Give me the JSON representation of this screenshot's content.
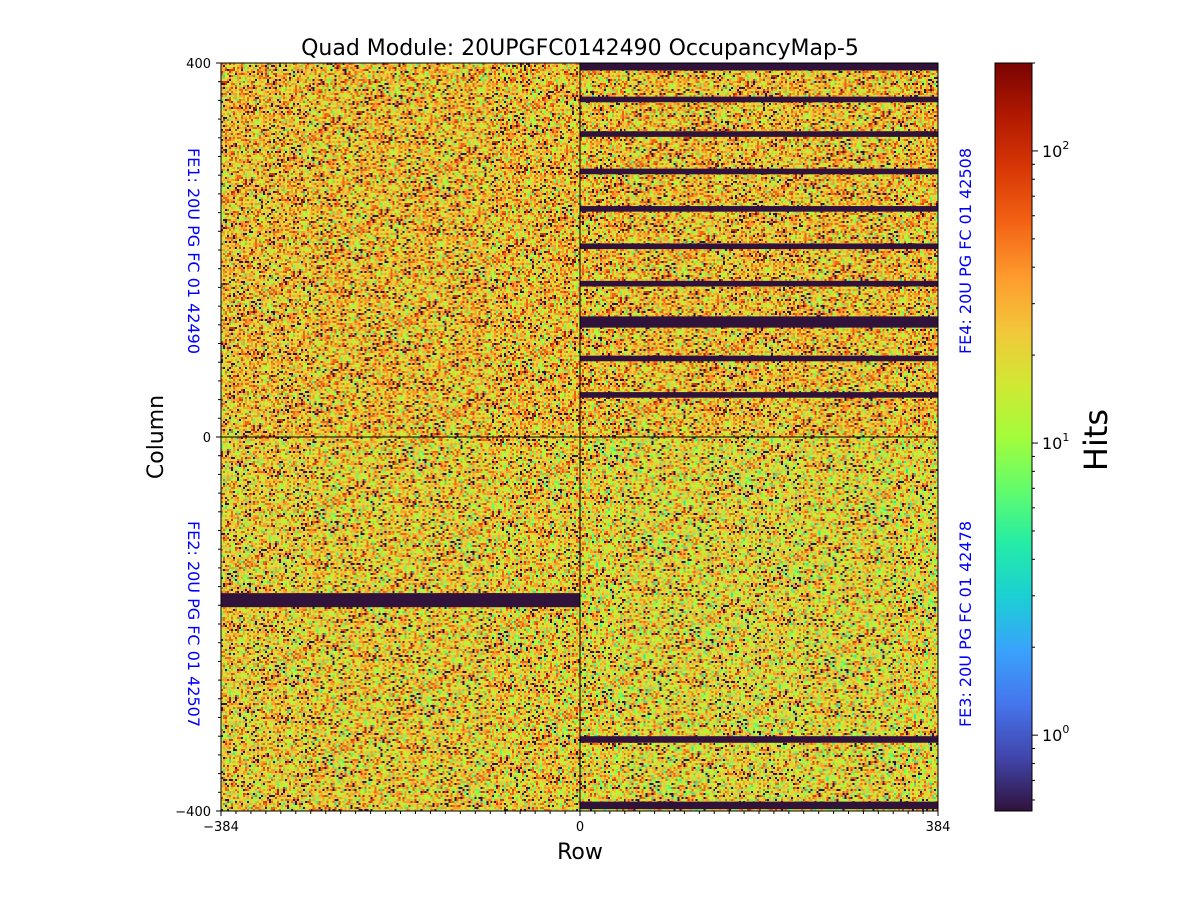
{
  "chart_data": {
    "type": "heatmap",
    "title": "Quad Module: 20UPGFC0142490 OccupancyMap-5",
    "xlabel": "Row",
    "ylabel": "Column",
    "xlim": [
      -384,
      384
    ],
    "ylim": [
      -400,
      400
    ],
    "x_ticks": [
      "−384",
      "0",
      "0",
      "384"
    ],
    "y_ticks": [
      "400",
      "0",
      "−400"
    ],
    "colorbar": {
      "label": "Hits",
      "scale": "log",
      "range": [
        0.55,
        200
      ],
      "ticks": [
        {
          "value": 100,
          "base": "10",
          "exp": "2"
        },
        {
          "value": 10,
          "base": "10",
          "exp": "1"
        },
        {
          "value": 1,
          "base": "10",
          "exp": "0"
        }
      ],
      "colormap": [
        "#30123b",
        "#4145ab",
        "#4675ed",
        "#39a2fc",
        "#1bcfd4",
        "#24eca6",
        "#61fc6c",
        "#a4fc3b",
        "#d1e834",
        "#f3c63a",
        "#fe9b2d",
        "#f36315",
        "#d93806",
        "#b11901",
        "#7a0402"
      ]
    },
    "chips": [
      {
        "name": "FE1: 20U PG FC 01 42490",
        "quadrant": "top-left",
        "mean_hits": 25,
        "dead_row_bands": []
      },
      {
        "name": "FE4: 20U PG FC 01 42508",
        "quadrant": "top-right",
        "mean_hits": 25,
        "dead_row_bands": [
          [
            392,
            400
          ],
          [
            358,
            364
          ],
          [
            321,
            327
          ],
          [
            281,
            287
          ],
          [
            241,
            247
          ],
          [
            201,
            207
          ],
          [
            161,
            167
          ],
          [
            117,
            129
          ],
          [
            81,
            87
          ],
          [
            42,
            48
          ]
        ]
      },
      {
        "name": "FE2: 20U PG FC 01 42507",
        "quadrant": "bottom-left",
        "mean_hits": 22,
        "dead_row_bands": [
          [
            -182,
            -167
          ]
        ]
      },
      {
        "name": "FE3: 20U PG FC 01 42478",
        "quadrant": "bottom-right",
        "mean_hits": 20,
        "dead_row_bands": [
          [
            -327,
            -320
          ],
          [
            -398,
            -390
          ]
        ]
      }
    ]
  }
}
